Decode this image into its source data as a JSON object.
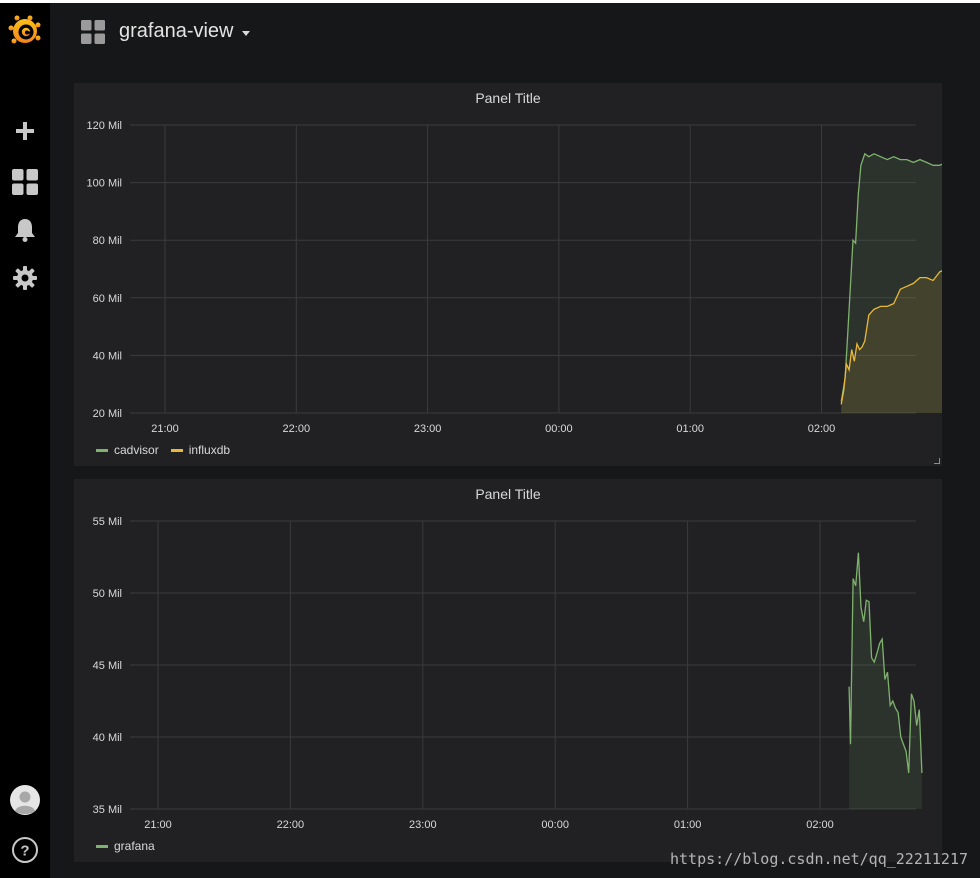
{
  "app": {
    "dashboard_title": "grafana-view",
    "sidebar": [
      {
        "icon": "grafana-logo-icon"
      },
      {
        "icon": "plus-icon"
      },
      {
        "icon": "dashboards-icon"
      },
      {
        "icon": "bell-icon"
      },
      {
        "icon": "gear-icon"
      },
      {
        "icon": "avatar-icon"
      },
      {
        "icon": "help-icon"
      }
    ],
    "watermark": "https://blog.csdn.net/qq_22211217"
  },
  "panels": [
    {
      "title": "Panel Title",
      "legend": [
        {
          "name": "cadvisor",
          "color": "#7eb26d"
        },
        {
          "name": "influxdb",
          "color": "#eab839"
        }
      ]
    },
    {
      "title": "Panel Title",
      "legend": [
        {
          "name": "grafana",
          "color": "#7eb26d"
        }
      ]
    }
  ],
  "chart_data": [
    {
      "type": "area",
      "title": "Panel Title",
      "x_ticks": [
        "21:00",
        "22:00",
        "23:00",
        "00:00",
        "01:00",
        "02:00"
      ],
      "y_ticks": [
        "20 Mil",
        "40 Mil",
        "60 Mil",
        "80 Mil",
        "100 Mil",
        "120 Mil"
      ],
      "ylim": [
        20,
        120
      ],
      "grid": true,
      "legend_position": "bottom-left",
      "x_unit": "hours since 21:00",
      "series": [
        {
          "name": "cadvisor",
          "color": "#7eb26d",
          "points": [
            [
              5.15,
              24
            ],
            [
              5.18,
              32
            ],
            [
              5.2,
              48
            ],
            [
              5.22,
              64
            ],
            [
              5.24,
              80
            ],
            [
              5.26,
              79
            ],
            [
              5.28,
              96
            ],
            [
              5.3,
              106
            ],
            [
              5.33,
              110
            ],
            [
              5.36,
              109
            ],
            [
              5.4,
              110
            ],
            [
              5.45,
              109
            ],
            [
              5.5,
              108
            ],
            [
              5.55,
              109
            ],
            [
              5.6,
              108
            ],
            [
              5.65,
              108
            ],
            [
              5.7,
              107
            ],
            [
              5.75,
              108
            ],
            [
              5.8,
              107
            ],
            [
              5.85,
              106
            ],
            [
              5.9,
              106
            ],
            [
              5.95,
              107
            ],
            [
              6.0,
              106
            ],
            [
              6.05,
              106
            ],
            [
              6.1,
              105
            ],
            [
              6.15,
              104
            ],
            [
              6.2,
              102
            ]
          ]
        },
        {
          "name": "influxdb",
          "color": "#eab839",
          "points": [
            [
              5.15,
              23
            ],
            [
              5.17,
              28
            ],
            [
              5.19,
              37
            ],
            [
              5.21,
              35
            ],
            [
              5.23,
              42
            ],
            [
              5.25,
              38
            ],
            [
              5.27,
              44
            ],
            [
              5.29,
              42
            ],
            [
              5.31,
              43
            ],
            [
              5.33,
              45
            ],
            [
              5.36,
              54
            ],
            [
              5.4,
              56
            ],
            [
              5.45,
              57
            ],
            [
              5.5,
              57
            ],
            [
              5.55,
              58
            ],
            [
              5.6,
              63
            ],
            [
              5.65,
              64
            ],
            [
              5.7,
              65
            ],
            [
              5.75,
              67
            ],
            [
              5.8,
              67
            ],
            [
              5.85,
              66
            ],
            [
              5.9,
              69
            ],
            [
              5.95,
              70
            ],
            [
              6.0,
              71
            ],
            [
              6.1,
              71
            ],
            [
              6.2,
              71
            ]
          ]
        }
      ]
    },
    {
      "type": "area",
      "title": "Panel Title",
      "x_ticks": [
        "21:00",
        "22:00",
        "23:00",
        "00:00",
        "01:00",
        "02:00"
      ],
      "y_ticks": [
        "35 Mil",
        "40 Mil",
        "45 Mil",
        "50 Mil",
        "55 Mil"
      ],
      "ylim": [
        35,
        55
      ],
      "grid": true,
      "legend_position": "bottom-left",
      "x_unit": "hours since 21:00",
      "series": [
        {
          "name": "grafana",
          "color": "#7eb26d",
          "points": [
            [
              5.22,
              43.5
            ],
            [
              5.23,
              39.5
            ],
            [
              5.25,
              51
            ],
            [
              5.27,
              50.5
            ],
            [
              5.29,
              52.8
            ],
            [
              5.31,
              49
            ],
            [
              5.33,
              48
            ],
            [
              5.35,
              49.5
            ],
            [
              5.37,
              49.4
            ],
            [
              5.39,
              45.5
            ],
            [
              5.41,
              45.2
            ],
            [
              5.43,
              45.8
            ],
            [
              5.45,
              46.5
            ],
            [
              5.47,
              46.8
            ],
            [
              5.49,
              44
            ],
            [
              5.51,
              44.5
            ],
            [
              5.53,
              42.2
            ],
            [
              5.55,
              42.5
            ],
            [
              5.57,
              42
            ],
            [
              5.59,
              41.7
            ],
            [
              5.61,
              40
            ],
            [
              5.63,
              39.5
            ],
            [
              5.65,
              39
            ],
            [
              5.67,
              37.5
            ],
            [
              5.69,
              43
            ],
            [
              5.71,
              42.5
            ],
            [
              5.73,
              40.8
            ],
            [
              5.75,
              41.9
            ],
            [
              5.77,
              37.5
            ]
          ]
        }
      ]
    }
  ]
}
